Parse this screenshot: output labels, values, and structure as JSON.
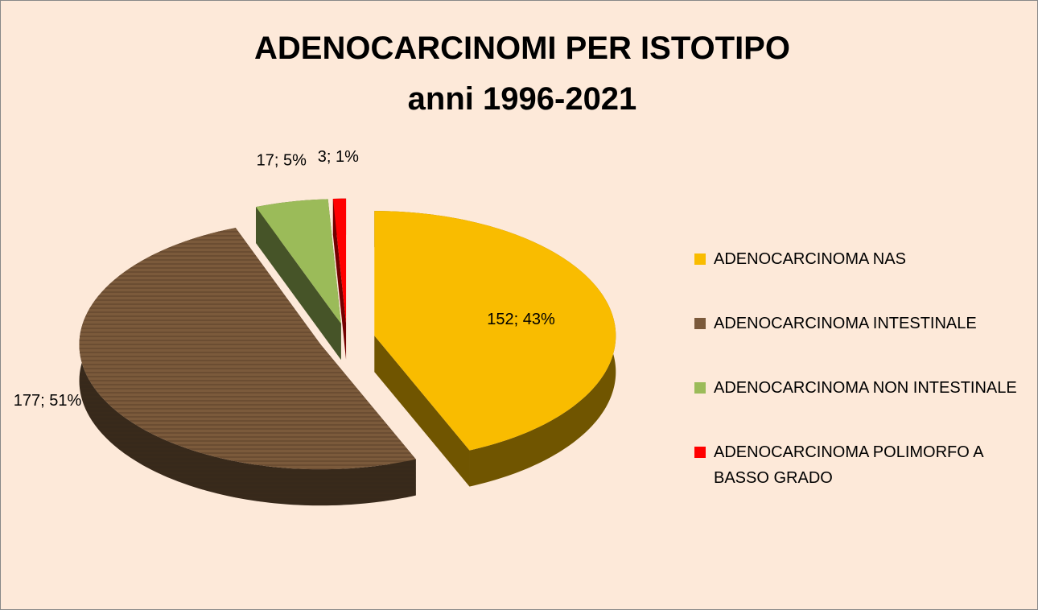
{
  "chart_data": {
    "type": "pie3d",
    "title": "ADENOCARCINOMI PER ISTOTIPO",
    "subtitle": "anni 1996-2021",
    "categories": [
      "ADENOCARCINOMA NAS",
      "ADENOCARCINOMA INTESTINALE",
      "ADENOCARCINOMA NON INTESTINALE",
      "ADENOCARCINOMA POLIMORFO A BASSO GRADO"
    ],
    "values": [
      152,
      177,
      17,
      3
    ],
    "value_labels": [
      "152; 43%",
      "177; 51%",
      "17; 5%",
      "3; 1%"
    ],
    "colors": [
      "#f9bc00",
      "#7b5a3b",
      "#9bbb59",
      "#ff0000"
    ],
    "legend": "right"
  }
}
